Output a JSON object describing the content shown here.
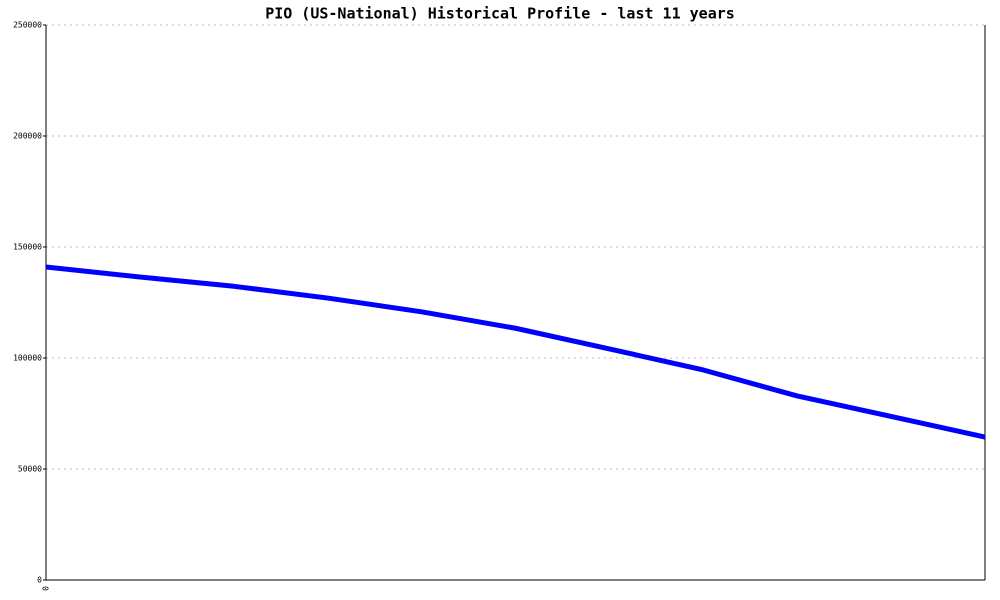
{
  "chart_data": {
    "type": "line",
    "title": "PIO (US-National) Historical Profile - last 11 years",
    "categories": [
      "0",
      null,
      null,
      null,
      null,
      null,
      null,
      null,
      null,
      null,
      null
    ],
    "series": [
      {
        "name": "PIO",
        "color": "#0000ff",
        "values": [
          141000,
          136500,
          132300,
          127000,
          120800,
          113400,
          104100,
          94600,
          82900,
          73700,
          64400
        ]
      }
    ],
    "ylim": [
      0,
      250000
    ],
    "yticks": [
      0,
      50000,
      100000,
      150000,
      200000,
      250000
    ],
    "grid": true
  }
}
